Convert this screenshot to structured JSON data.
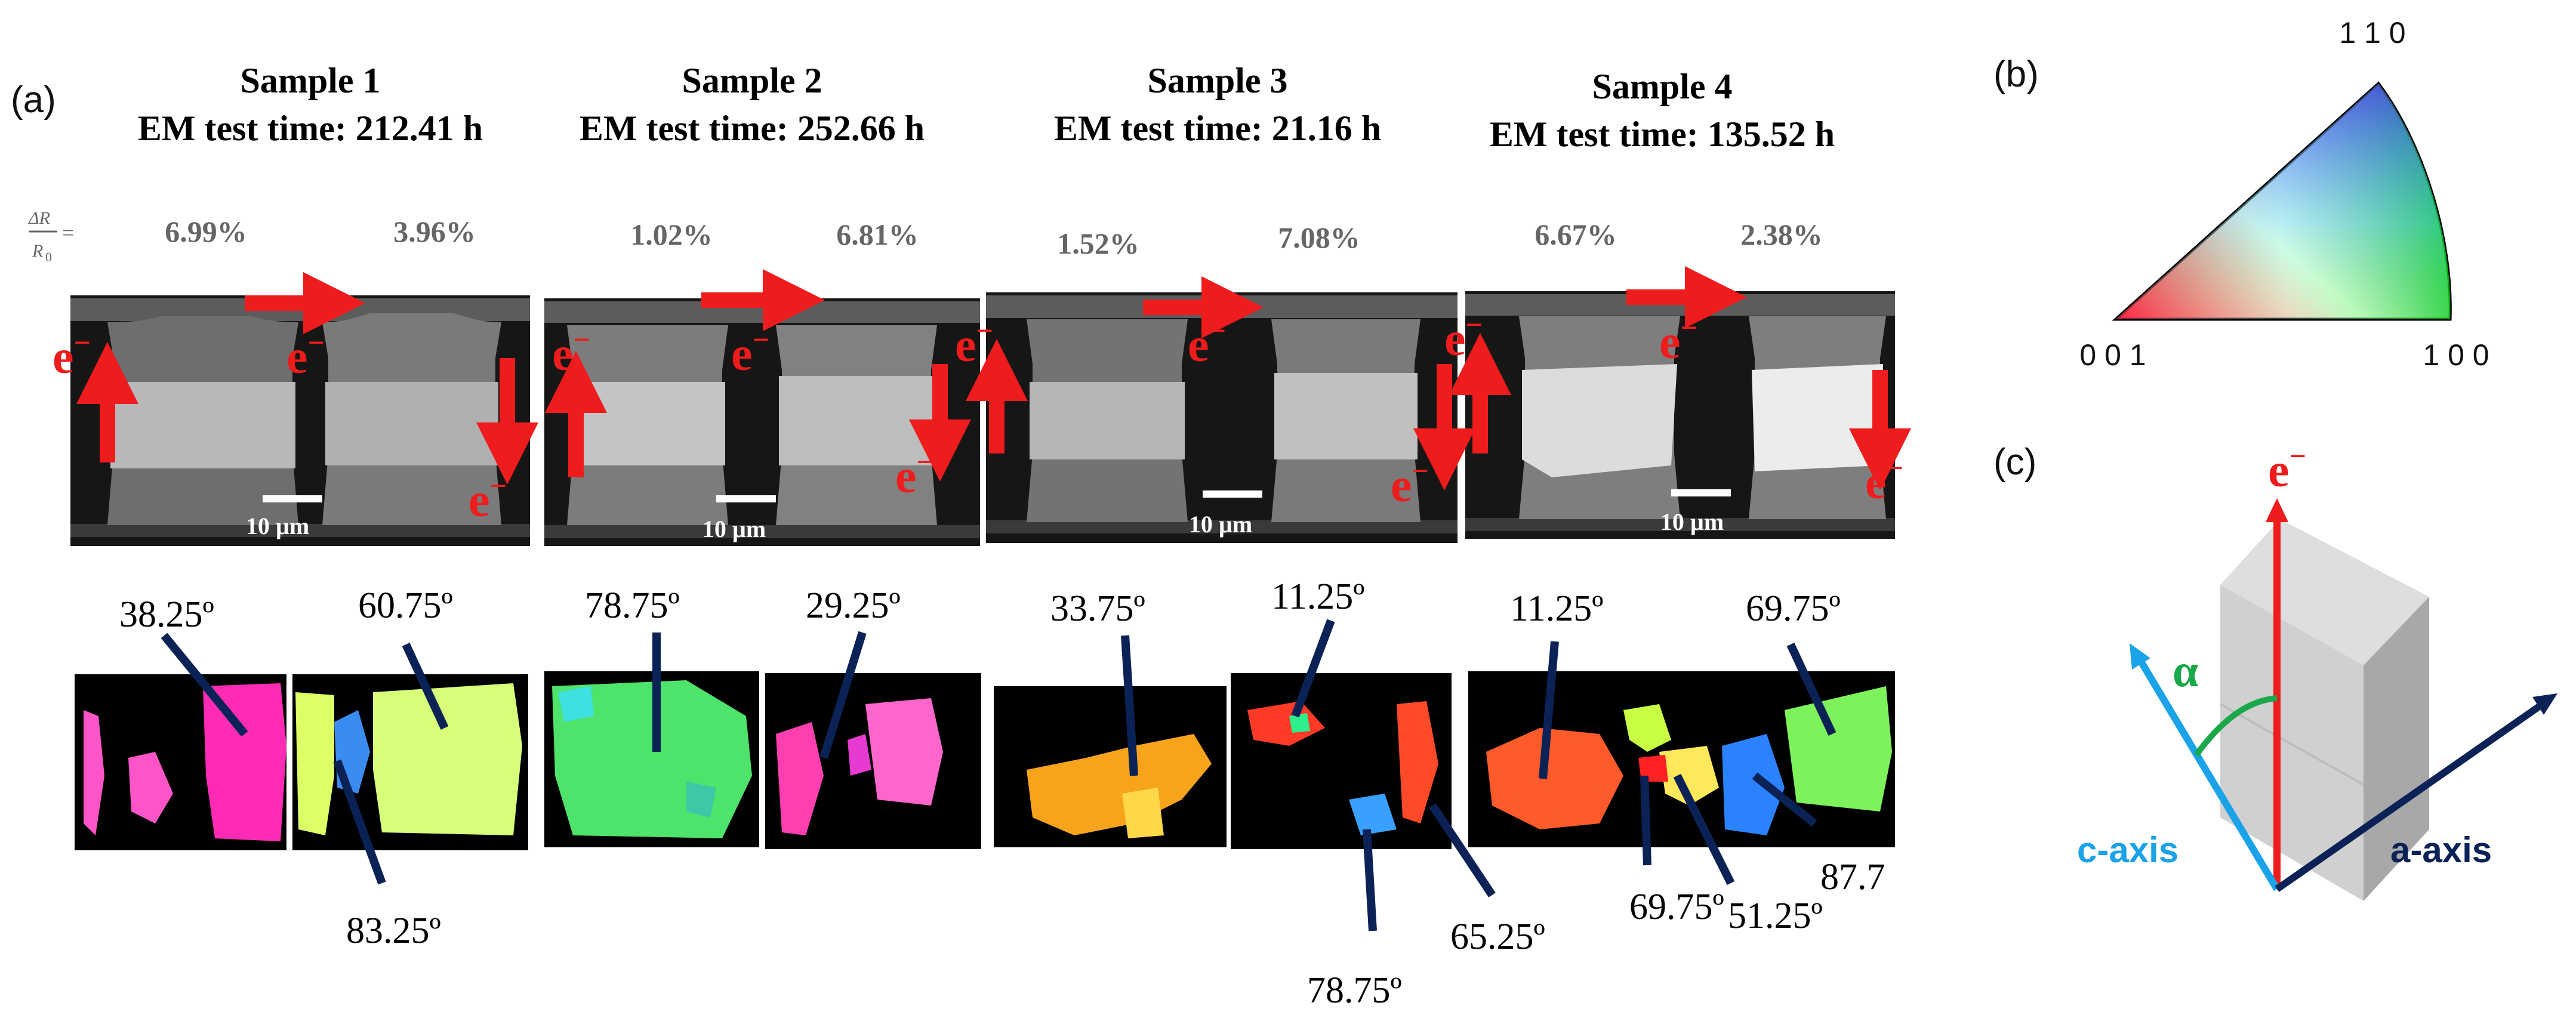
{
  "panel_labels": {
    "a": "(a)",
    "b": "(b)",
    "c": "(c)"
  },
  "formula": {
    "numerator": "ΔR",
    "denominator": "R",
    "subscript": "0",
    "equals": "="
  },
  "samples": [
    {
      "title": "Sample 1",
      "test_time": "EM test time: 212.41 h",
      "left_pct": "6.99%",
      "right_pct": "3.96%",
      "scale_bar": "10 µm",
      "angles": [
        "38.25º",
        "60.75º",
        "83.25º"
      ]
    },
    {
      "title": "Sample 2",
      "test_time": "EM test time: 252.66 h",
      "left_pct": "1.02%",
      "right_pct": "6.81%",
      "scale_bar": "10 µm",
      "angles": [
        "78.75º",
        "29.25º"
      ]
    },
    {
      "title": "Sample 3",
      "test_time": "EM test time: 21.16 h",
      "left_pct": "1.52%",
      "right_pct": "7.08%",
      "scale_bar": "10 µm",
      "angles": [
        "33.75º",
        "11.25º",
        "78.75º",
        "65.25º"
      ]
    },
    {
      "title": "Sample 4",
      "test_time": "EM test time: 135.52 h",
      "left_pct": "6.67%",
      "right_pct": "2.38%",
      "scale_bar": "10 µm",
      "angles": [
        "11.25º",
        "69.75º",
        "69.75º",
        "51.25º",
        "87.7"
      ]
    }
  ],
  "electron_label": "e",
  "electron_sup": "−",
  "ipf": {
    "label_110": "1 1 0",
    "label_001": "0 0 1",
    "label_100": "1 0 0"
  },
  "crystal_diagram": {
    "electron_label": "e",
    "electron_sup": "−",
    "alpha": "α",
    "c_axis": "c-axis",
    "a_axis": "a-axis"
  },
  "colors": {
    "red": "#ee1c1c",
    "navy": "#0b2257",
    "cyan": "#1aa3e8",
    "green": "#1aa84a"
  }
}
